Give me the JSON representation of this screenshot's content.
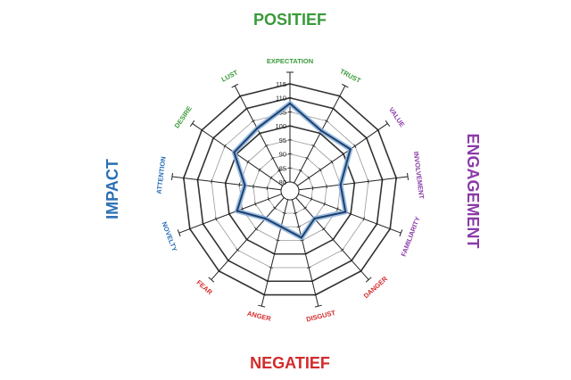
{
  "chart_data": {
    "type": "radar",
    "axes": [
      {
        "label": "EXPECTATION",
        "group": "POSITIEF"
      },
      {
        "label": "TRUST",
        "group": "POSITIEF"
      },
      {
        "label": "VALUE",
        "group": "ENGAGEMENT"
      },
      {
        "label": "INVOLVEMENT",
        "group": "ENGAGEMENT"
      },
      {
        "label": "FAMILIARITY",
        "group": "ENGAGEMENT"
      },
      {
        "label": "DANGER",
        "group": "NEGATIEF"
      },
      {
        "label": "DISGUST",
        "group": "NEGATIEF"
      },
      {
        "label": "ANGER",
        "group": "NEGATIEF"
      },
      {
        "label": "FEAR",
        "group": "NEGATIEF"
      },
      {
        "label": "NOVELTY",
        "group": "IMPACT"
      },
      {
        "label": "ATTENTION",
        "group": "IMPACT"
      },
      {
        "label": "DESIRE",
        "group": "POSITIEF"
      },
      {
        "label": "LUST",
        "group": "POSITIEF"
      }
    ],
    "values": [
      108,
      101,
      103,
      95,
      98,
      90,
      94,
      90,
      90,
      97,
      93,
      101,
      102
    ],
    "rlim": [
      80,
      115
    ],
    "ticks": [
      80,
      85,
      90,
      95,
      100,
      105,
      110,
      115
    ],
    "tick_labels": [
      "80",
      "85",
      "90",
      "95",
      "100",
      "105",
      "110",
      "115"
    ],
    "groups": [
      {
        "name": "POSITIEF",
        "color": "#3a9a3a"
      },
      {
        "name": "ENGAGEMENT",
        "color": "#8b3aa8"
      },
      {
        "name": "NEGATIEF",
        "color": "#d22b2b"
      },
      {
        "name": "IMPACT",
        "color": "#2a6eb5"
      }
    ],
    "series_color": "#1f3f6e",
    "series_halo": "#8fb6dd"
  }
}
